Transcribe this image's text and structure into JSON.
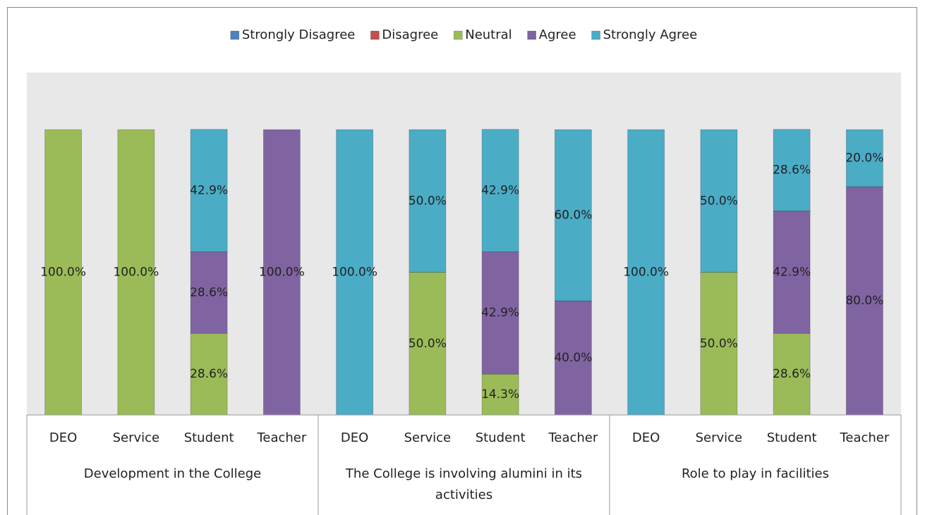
{
  "chart_data": {
    "type": "stacked_bar",
    "categories": [
      "DEO",
      "Service",
      "Student",
      "Teacher",
      "DEO",
      "Service",
      "Student",
      "Teacher",
      "DEO",
      "Service",
      "Student",
      "Teacher"
    ],
    "groups": [
      "Development in the College",
      "The College is involving alumini in its activities",
      "Role to play in facilities"
    ],
    "ylim": [
      0,
      100
    ],
    "series": [
      {
        "name": "Strongly Disagree",
        "color": "#4f81bd",
        "values": [
          null,
          null,
          null,
          null,
          null,
          null,
          null,
          null,
          null,
          null,
          null,
          null
        ],
        "value_labels": [
          null,
          null,
          null,
          null,
          null,
          null,
          null,
          null,
          null,
          null,
          null,
          null
        ]
      },
      {
        "name": "Disagree",
        "color": "#c0504d",
        "values": [
          null,
          null,
          null,
          null,
          null,
          null,
          null,
          null,
          null,
          null,
          null,
          null
        ],
        "value_labels": [
          null,
          null,
          null,
          null,
          null,
          null,
          null,
          null,
          null,
          null,
          null,
          null
        ]
      },
      {
        "name": "Neutral",
        "color": "#9bbb59",
        "values": [
          100,
          100,
          28.6,
          null,
          null,
          50,
          14.3,
          null,
          null,
          50,
          28.6,
          null
        ],
        "value_labels": [
          "100.0%",
          "100.0%",
          "28.6%",
          null,
          null,
          "50.0%",
          "14.3%",
          null,
          null,
          "50.0%",
          "28.6%",
          null
        ]
      },
      {
        "name": "Agree",
        "color": "#8064a2",
        "values": [
          null,
          null,
          28.6,
          100,
          null,
          null,
          42.9,
          40,
          null,
          null,
          42.9,
          80
        ],
        "value_labels": [
          null,
          null,
          "28.6%",
          "100.0%",
          null,
          null,
          "42.9%",
          "40.0%",
          null,
          null,
          "42.9%",
          "80.0%"
        ]
      },
      {
        "name": "Strongly Agree",
        "color": "#4bacc6",
        "values": [
          null,
          null,
          42.9,
          null,
          100,
          50,
          42.9,
          60,
          100,
          50,
          28.6,
          20
        ],
        "value_labels": [
          null,
          null,
          "42.9%",
          null,
          "100.0%",
          "50.0%",
          "42.9%",
          "60.0%",
          "100.0%",
          "50.0%",
          "28.6%",
          "20.0%"
        ]
      }
    ]
  }
}
